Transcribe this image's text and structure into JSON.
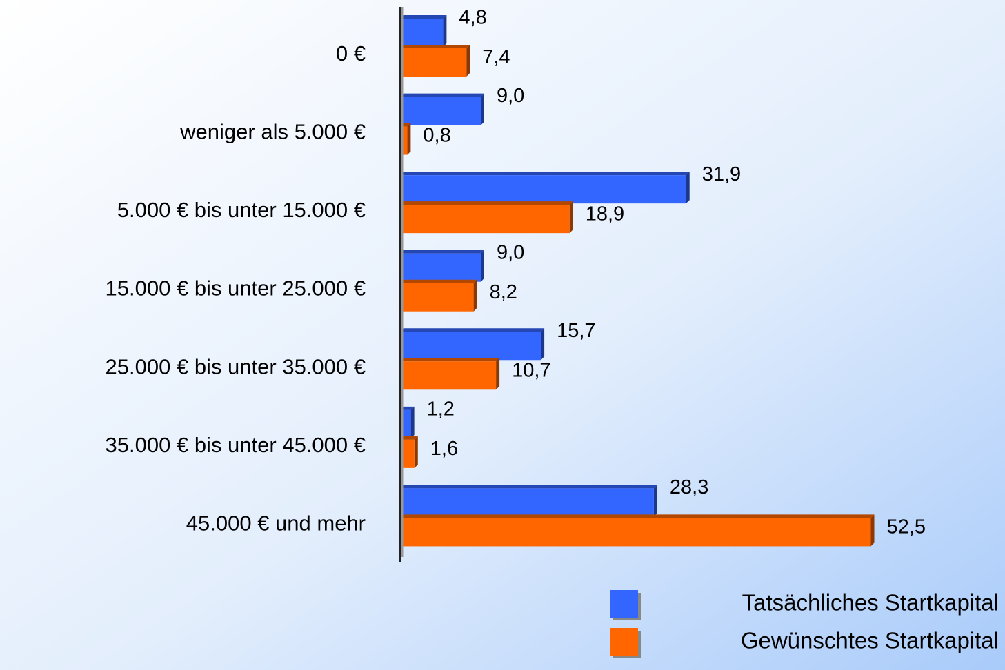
{
  "chart_data": {
    "type": "bar",
    "orientation": "horizontal",
    "categories": [
      "0 €",
      "weniger als 5.000 €",
      "5.000 € bis unter 15.000 €",
      "15.000 € bis unter 25.000 €",
      "25.000 € bis unter 35.000 €",
      "35.000 € bis unter 45.000 €",
      "45.000 € und mehr"
    ],
    "series": [
      {
        "name": "Tatsächliches Startkapital",
        "color": "#3366ff",
        "values": [
          4.8,
          9.0,
          31.9,
          9.0,
          15.7,
          1.2,
          28.3
        ],
        "value_labels": [
          "4,8",
          "9,0",
          "31,9",
          "9,0",
          "15,7",
          "1,2",
          "28,3"
        ]
      },
      {
        "name": "Gewünschtes Startkapital",
        "color": "#ff6600",
        "values": [
          7.4,
          0.8,
          18.9,
          8.2,
          10.7,
          1.6,
          52.5
        ],
        "value_labels": [
          "7,4",
          "0,8",
          "18,9",
          "8,2",
          "10,7",
          "1,6",
          "52,5"
        ]
      }
    ],
    "xlim": [
      0,
      60
    ],
    "legend": "bottom-right"
  }
}
